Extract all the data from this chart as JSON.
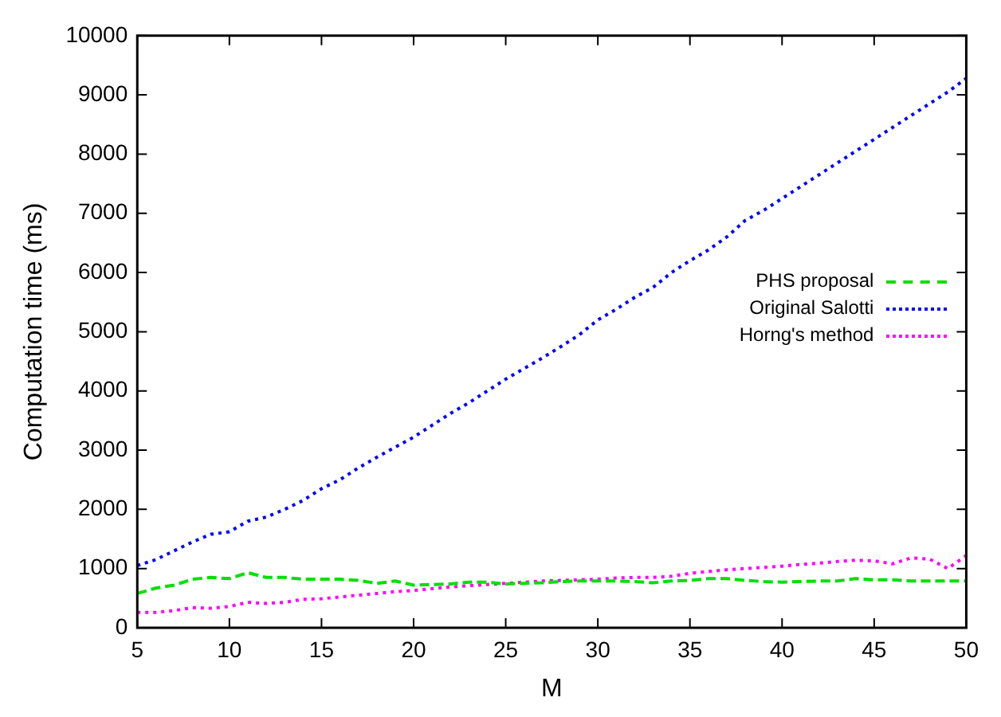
{
  "chart_data": {
    "type": "line",
    "xlabel": "M",
    "ylabel": "Computation time (ms)",
    "x": [
      5,
      6,
      7,
      8,
      9,
      10,
      11,
      12,
      13,
      14,
      15,
      16,
      17,
      18,
      19,
      20,
      21,
      22,
      23,
      24,
      25,
      26,
      27,
      28,
      29,
      30,
      31,
      32,
      33,
      34,
      35,
      36,
      37,
      38,
      39,
      40,
      41,
      42,
      43,
      44,
      45,
      46,
      47,
      48,
      49,
      50
    ],
    "series": [
      {
        "name": "PHS proposal",
        "color": "#00e000",
        "line_style": "dashed",
        "values": [
          580,
          670,
          720,
          820,
          850,
          830,
          930,
          850,
          850,
          820,
          820,
          820,
          800,
          750,
          790,
          720,
          730,
          740,
          770,
          770,
          740,
          750,
          760,
          780,
          790,
          790,
          790,
          780,
          760,
          790,
          800,
          830,
          830,
          800,
          780,
          770,
          780,
          790,
          790,
          830,
          810,
          810,
          790,
          790,
          790,
          790
        ]
      },
      {
        "name": "Original Salotti",
        "color": "#0000ff",
        "line_style": "dotted",
        "values": [
          1050,
          1150,
          1300,
          1450,
          1580,
          1620,
          1800,
          1870,
          2000,
          2150,
          2350,
          2500,
          2700,
          2880,
          3050,
          3220,
          3420,
          3620,
          3800,
          4000,
          4200,
          4380,
          4560,
          4750,
          4950,
          5200,
          5380,
          5580,
          5750,
          6000,
          6200,
          6380,
          6600,
          6880,
          7050,
          7250,
          7450,
          7650,
          7850,
          8050,
          8250,
          8450,
          8650,
          8850,
          9050,
          9280
        ]
      },
      {
        "name": "Horng's method",
        "color": "#ff00ff",
        "line_style": "dotted",
        "values": [
          260,
          260,
          290,
          340,
          330,
          360,
          430,
          410,
          430,
          480,
          490,
          520,
          550,
          580,
          610,
          630,
          660,
          690,
          710,
          730,
          750,
          770,
          790,
          800,
          810,
          820,
          840,
          850,
          850,
          870,
          920,
          950,
          980,
          1000,
          1020,
          1040,
          1070,
          1090,
          1120,
          1140,
          1130,
          1080,
          1180,
          1160,
          1000,
          1220
        ]
      }
    ],
    "xlim": [
      5,
      50
    ],
    "xticks": [
      5,
      10,
      15,
      20,
      25,
      30,
      35,
      40,
      45,
      50
    ],
    "ylim": [
      0,
      10000
    ],
    "yticks": [
      0,
      1000,
      2000,
      3000,
      4000,
      5000,
      6000,
      7000,
      8000,
      9000,
      10000
    ],
    "grid": false,
    "legend": "right",
    "marker": "none"
  }
}
